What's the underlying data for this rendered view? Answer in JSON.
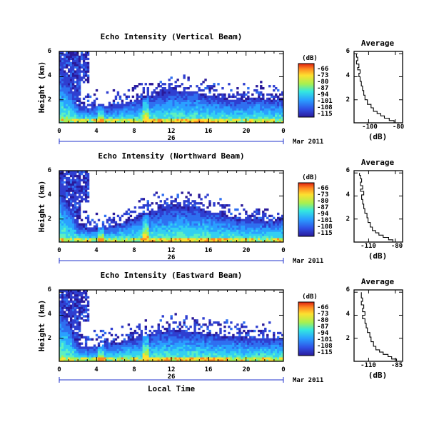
{
  "chart_data": [
    {
      "type": "heatmap",
      "title": "Echo Intensity (Vertical Beam)",
      "ylabel": "Height (km)",
      "xticks": [
        "0",
        "4",
        "8",
        "12",
        "16",
        "20",
        "0"
      ],
      "yticks": [
        "2",
        "4",
        "6"
      ],
      "xlim": [
        0,
        24
      ],
      "ylim": [
        0,
        6.2
      ],
      "date_center": "26",
      "date_label": "Mar 2011",
      "colorbar": {
        "label": "(dB)",
        "ticks": [
          "-66",
          "-73",
          "-80",
          "-87",
          "-94",
          "-101",
          "-108",
          "-115"
        ],
        "range": [
          -115,
          -62
        ]
      },
      "boundary_km": [
        4.8,
        3.5,
        1.6,
        1.3,
        1.5,
        1.4,
        1.5,
        1.7,
        1.9,
        2.2,
        2.4,
        2.6,
        2.8,
        2.8,
        2.7,
        2.6,
        2.4,
        2.3,
        2.1,
        2.0,
        2.1,
        2.2,
        2.1,
        2.0,
        2.1
      ],
      "average": {
        "title": "Average",
        "xlabel": "(dB)",
        "xticks": [
          "-100",
          "-80"
        ],
        "xlim": [
          -115,
          -75
        ],
        "yticks": [
          "2",
          "4",
          "6"
        ],
        "profile": [
          [
            -78,
            0.0
          ],
          [
            -82,
            0.2
          ],
          [
            -86,
            0.4
          ],
          [
            -90,
            0.6
          ],
          [
            -93,
            0.8
          ],
          [
            -96,
            1.0
          ],
          [
            -99,
            1.3
          ],
          [
            -101,
            1.6
          ],
          [
            -104,
            2.0
          ],
          [
            -106,
            2.4
          ],
          [
            -107,
            2.8
          ],
          [
            -108,
            3.2
          ],
          [
            -109,
            3.6
          ],
          [
            -110,
            4.0
          ],
          [
            -111,
            4.3
          ],
          [
            -110,
            4.6
          ],
          [
            -112,
            4.8
          ],
          [
            -111,
            5.1
          ],
          [
            -113,
            5.4
          ],
          [
            -112,
            5.7
          ],
          [
            -113,
            6.0
          ]
        ]
      }
    },
    {
      "type": "heatmap",
      "title": "Echo Intensity (Northward Beam)",
      "ylabel": "Height (km)",
      "xticks": [
        "0",
        "4",
        "8",
        "12",
        "16",
        "20",
        "0"
      ],
      "yticks": [
        "2",
        "4",
        "6"
      ],
      "xlim": [
        0,
        24
      ],
      "ylim": [
        0,
        6.2
      ],
      "date_center": "26",
      "date_label": "Mar 2011",
      "colorbar": {
        "label": "(dB)",
        "ticks": [
          "-66",
          "-73",
          "-80",
          "-87",
          "-94",
          "-101",
          "-108",
          "-115"
        ],
        "range": [
          -115,
          -62
        ]
      },
      "boundary_km": [
        5.0,
        3.3,
        1.5,
        1.2,
        1.3,
        1.3,
        1.5,
        1.8,
        2.1,
        2.4,
        2.6,
        2.9,
        3.1,
        3.2,
        3.1,
        2.9,
        2.7,
        2.5,
        2.3,
        2.1,
        2.0,
        2.0,
        1.9,
        1.9,
        2.0
      ],
      "average": {
        "title": "Average",
        "xlabel": "(dB)",
        "xticks": [
          "-110",
          "-80"
        ],
        "xlim": [
          -120,
          -75
        ],
        "yticks": [
          "2",
          "4",
          "6"
        ],
        "profile": [
          [
            -80,
            0.0
          ],
          [
            -84,
            0.2
          ],
          [
            -88,
            0.4
          ],
          [
            -93,
            0.6
          ],
          [
            -97,
            0.8
          ],
          [
            -100,
            1.0
          ],
          [
            -103,
            1.3
          ],
          [
            -105,
            1.7
          ],
          [
            -107,
            2.1
          ],
          [
            -108,
            2.5
          ],
          [
            -110,
            2.9
          ],
          [
            -111,
            3.3
          ],
          [
            -112,
            3.7
          ],
          [
            -113,
            4.1
          ],
          [
            -111,
            4.4
          ],
          [
            -114,
            4.6
          ],
          [
            -112,
            4.9
          ],
          [
            -114,
            5.2
          ],
          [
            -113,
            5.5
          ],
          [
            -114,
            5.8
          ],
          [
            -115,
            6.0
          ]
        ]
      }
    },
    {
      "type": "heatmap",
      "title": "Echo Intensity (Eastward Beam)",
      "ylabel": "Height (km)",
      "xlabel": "Local Time",
      "xticks": [
        "0",
        "4",
        "8",
        "12",
        "16",
        "20",
        "0"
      ],
      "yticks": [
        "2",
        "4",
        "6"
      ],
      "xlim": [
        0,
        24
      ],
      "ylim": [
        0,
        6.2
      ],
      "date_center": "26",
      "date_label": "Mar 2011",
      "colorbar": {
        "label": "(dB)",
        "ticks": [
          "-66",
          "-73",
          "-80",
          "-87",
          "-94",
          "-101",
          "-108",
          "-115"
        ],
        "range": [
          -115,
          -62
        ]
      },
      "boundary_km": [
        5.2,
        3.6,
        1.4,
        1.2,
        1.3,
        1.4,
        1.6,
        1.8,
        2.0,
        2.2,
        2.4,
        2.6,
        2.7,
        2.7,
        2.6,
        2.5,
        2.4,
        2.3,
        2.2,
        2.1,
        2.1,
        2.0,
        2.0,
        2.0,
        2.1
      ],
      "average": {
        "title": "Average",
        "xlabel": "(dB)",
        "xticks": [
          "-110",
          "-85"
        ],
        "xlim": [
          -120,
          -80
        ],
        "yticks": [
          "2",
          "4",
          "6"
        ],
        "profile": [
          [
            -82,
            0.0
          ],
          [
            -85,
            0.2
          ],
          [
            -89,
            0.4
          ],
          [
            -92,
            0.6
          ],
          [
            -96,
            0.8
          ],
          [
            -99,
            1.0
          ],
          [
            -102,
            1.3
          ],
          [
            -104,
            1.7
          ],
          [
            -106,
            2.1
          ],
          [
            -107,
            2.5
          ],
          [
            -109,
            2.9
          ],
          [
            -110,
            3.3
          ],
          [
            -111,
            3.7
          ],
          [
            -113,
            4.0
          ],
          [
            -111,
            4.3
          ],
          [
            -113,
            4.6
          ],
          [
            -112,
            4.9
          ],
          [
            -114,
            5.2
          ],
          [
            -113,
            5.5
          ],
          [
            -114,
            5.8
          ],
          [
            -114,
            6.0
          ]
        ]
      }
    }
  ]
}
